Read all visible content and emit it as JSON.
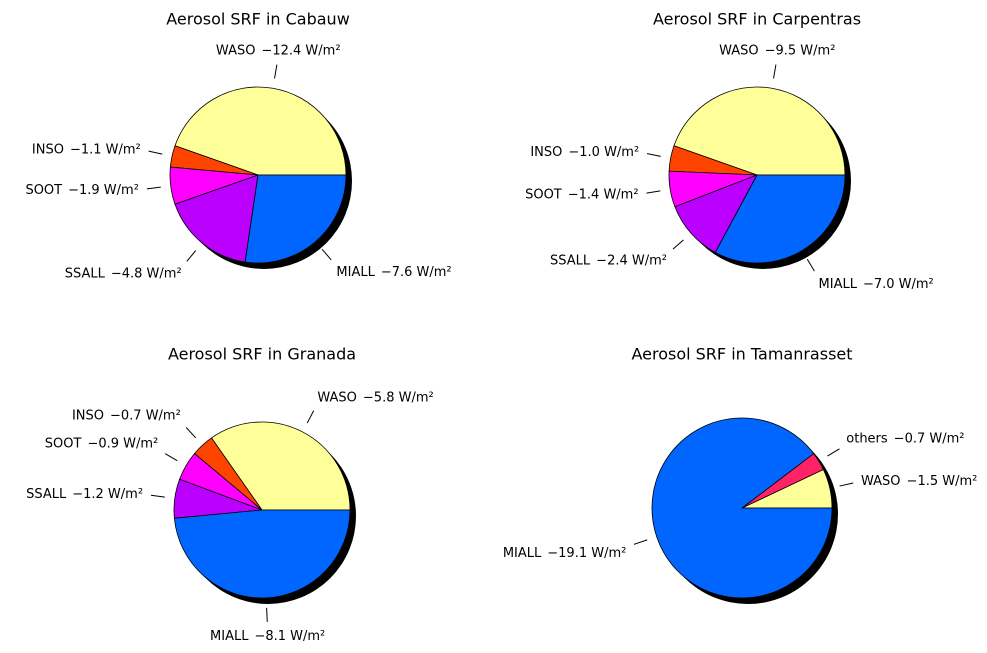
{
  "chart_data": [
    {
      "type": "pie",
      "title": "Aerosol SRF in Cabauw",
      "categories": [
        "WASO",
        "INSO",
        "SOOT",
        "SSALL",
        "MIALL"
      ],
      "values": [
        -12.4,
        -1.1,
        -1.9,
        -4.8,
        -7.6
      ],
      "value_labels": [
        "−12.4 W/m²",
        "−1.1 W/m²",
        "−1.9 W/m²",
        "−4.8 W/m²",
        "−7.6 W/m²"
      ],
      "colors": [
        "#ffff99",
        "#ff4400",
        "#ff00ff",
        "#bb00ff",
        "#0066ff"
      ]
    },
    {
      "type": "pie",
      "title": "Aerosol SRF in Carpentras",
      "categories": [
        "WASO",
        "INSO",
        "SOOT",
        "SSALL",
        "MIALL"
      ],
      "values": [
        -9.5,
        -1.0,
        -1.4,
        -2.4,
        -7.0
      ],
      "value_labels": [
        "−9.5 W/m²",
        "−1.0 W/m²",
        "−1.4 W/m²",
        "−2.4 W/m²",
        "−7.0 W/m²"
      ],
      "colors": [
        "#ffff99",
        "#ff4400",
        "#ff00ff",
        "#bb00ff",
        "#0066ff"
      ]
    },
    {
      "type": "pie",
      "title": "Aerosol SRF in Granada",
      "categories": [
        "WASO",
        "INSO",
        "SOOT",
        "SSALL",
        "MIALL"
      ],
      "values": [
        -5.8,
        -0.7,
        -0.9,
        -1.2,
        -8.1
      ],
      "value_labels": [
        "−5.8 W/m²",
        "−0.7 W/m²",
        "−0.9 W/m²",
        "−1.2 W/m²",
        "−8.1 W/m²"
      ],
      "colors": [
        "#ffff99",
        "#ff4400",
        "#ff00ff",
        "#bb00ff",
        "#0066ff"
      ]
    },
    {
      "type": "pie",
      "title": "Aerosol SRF in Tamanrasset",
      "categories": [
        "WASO",
        "others",
        "MIALL"
      ],
      "values": [
        -1.5,
        -0.7,
        -19.1
      ],
      "value_labels": [
        "−1.5 W/m²",
        "−0.7 W/m²",
        "−19.1 W/m²"
      ],
      "colors": [
        "#ffff99",
        "#ff2266",
        "#0066ff"
      ]
    }
  ]
}
